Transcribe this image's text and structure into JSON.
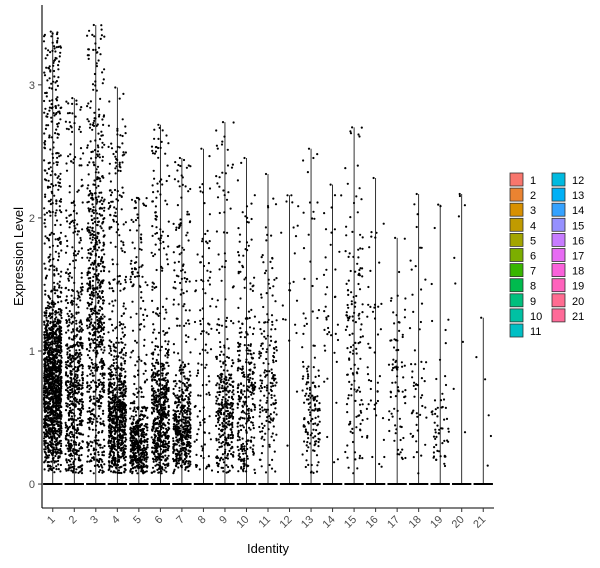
{
  "chart_data": {
    "type": "violin-jitter",
    "xlabel": "Identity",
    "ylabel": "Expression Level",
    "categories": [
      "1",
      "2",
      "3",
      "4",
      "5",
      "6",
      "7",
      "8",
      "9",
      "10",
      "11",
      "12",
      "13",
      "14",
      "15",
      "16",
      "17",
      "18",
      "19",
      "20",
      "21"
    ],
    "ylim": [
      -0.18,
      3.6
    ],
    "yticks": [
      0,
      1,
      2,
      3
    ],
    "grid": false,
    "legend_position": "right",
    "series": [
      {
        "name": "1",
        "color": "#F8766D",
        "max": 3.4,
        "zero_frac": 0.2,
        "dense_center": 0.75,
        "dense_sd": 0.32,
        "n_points": 1500
      },
      {
        "name": "2",
        "color": "#EA8331",
        "max": 2.9,
        "zero_frac": 0.35,
        "dense_center": 0.7,
        "dense_sd": 0.45,
        "n_points": 650
      },
      {
        "name": "3",
        "color": "#D89000",
        "max": 3.45,
        "zero_frac": 0.25,
        "dense_center": 1.2,
        "dense_sd": 0.65,
        "n_points": 750
      },
      {
        "name": "4",
        "color": "#C09B00",
        "max": 2.98,
        "zero_frac": 0.3,
        "dense_center": 0.5,
        "dense_sd": 0.25,
        "n_points": 780
      },
      {
        "name": "5",
        "color": "#A3A500",
        "max": 2.15,
        "zero_frac": 0.35,
        "dense_center": 0.3,
        "dense_sd": 0.16,
        "n_points": 480
      },
      {
        "name": "6",
        "color": "#7CAE00",
        "max": 2.7,
        "zero_frac": 0.3,
        "dense_center": 0.5,
        "dense_sd": 0.28,
        "n_points": 600
      },
      {
        "name": "7",
        "color": "#39B600",
        "max": 2.45,
        "zero_frac": 0.3,
        "dense_center": 0.4,
        "dense_sd": 0.2,
        "n_points": 520
      },
      {
        "name": "8",
        "color": "#00BB4E",
        "max": 2.52,
        "zero_frac": 0.55,
        "dense_center": 0.8,
        "dense_sd": 0.6,
        "n_points": 110
      },
      {
        "name": "9",
        "color": "#00BF7D",
        "max": 2.72,
        "zero_frac": 0.35,
        "dense_center": 0.5,
        "dense_sd": 0.22,
        "n_points": 340
      },
      {
        "name": "10",
        "color": "#00C1A3",
        "max": 2.45,
        "zero_frac": 0.4,
        "dense_center": 0.6,
        "dense_sd": 0.35,
        "n_points": 300
      },
      {
        "name": "11",
        "color": "#00BFC4",
        "max": 2.33,
        "zero_frac": 0.45,
        "dense_center": 0.7,
        "dense_sd": 0.35,
        "n_points": 180
      },
      {
        "name": "12",
        "color": "#00BAE0",
        "max": 2.17,
        "zero_frac": 0.7,
        "dense_center": 1.5,
        "dense_sd": 0.5,
        "n_points": 22
      },
      {
        "name": "13",
        "color": "#00B0F6",
        "max": 2.52,
        "zero_frac": 0.45,
        "dense_center": 0.55,
        "dense_sd": 0.25,
        "n_points": 150
      },
      {
        "name": "14",
        "color": "#35A2FF",
        "max": 2.25,
        "zero_frac": 0.6,
        "dense_center": 1.2,
        "dense_sd": 0.5,
        "n_points": 40
      },
      {
        "name": "15",
        "color": "#9590FF",
        "max": 2.68,
        "zero_frac": 0.45,
        "dense_center": 1.0,
        "dense_sd": 0.45,
        "n_points": 150
      },
      {
        "name": "16",
        "color": "#C77CFF",
        "max": 2.3,
        "zero_frac": 0.55,
        "dense_center": 1.0,
        "dense_sd": 0.5,
        "n_points": 50
      },
      {
        "name": "17",
        "color": "#E76BF3",
        "max": 1.85,
        "zero_frac": 0.5,
        "dense_center": 0.75,
        "dense_sd": 0.3,
        "n_points": 80
      },
      {
        "name": "18",
        "color": "#FA62DB",
        "max": 2.18,
        "zero_frac": 0.5,
        "dense_center": 0.75,
        "dense_sd": 0.35,
        "n_points": 55
      },
      {
        "name": "19",
        "color": "#FF62BC",
        "max": 2.1,
        "zero_frac": 0.5,
        "dense_center": 0.4,
        "dense_sd": 0.2,
        "n_points": 60
      },
      {
        "name": "20",
        "color": "#FF6C91",
        "max": 2.18,
        "zero_frac": 0.7,
        "dense_center": 1.4,
        "dense_sd": 0.45,
        "n_points": 8
      },
      {
        "name": "21",
        "color": "#FF6A98",
        "max": 1.25,
        "zero_frac": 0.7,
        "dense_center": 0.5,
        "dense_sd": 0.2,
        "n_points": 5
      }
    ]
  }
}
